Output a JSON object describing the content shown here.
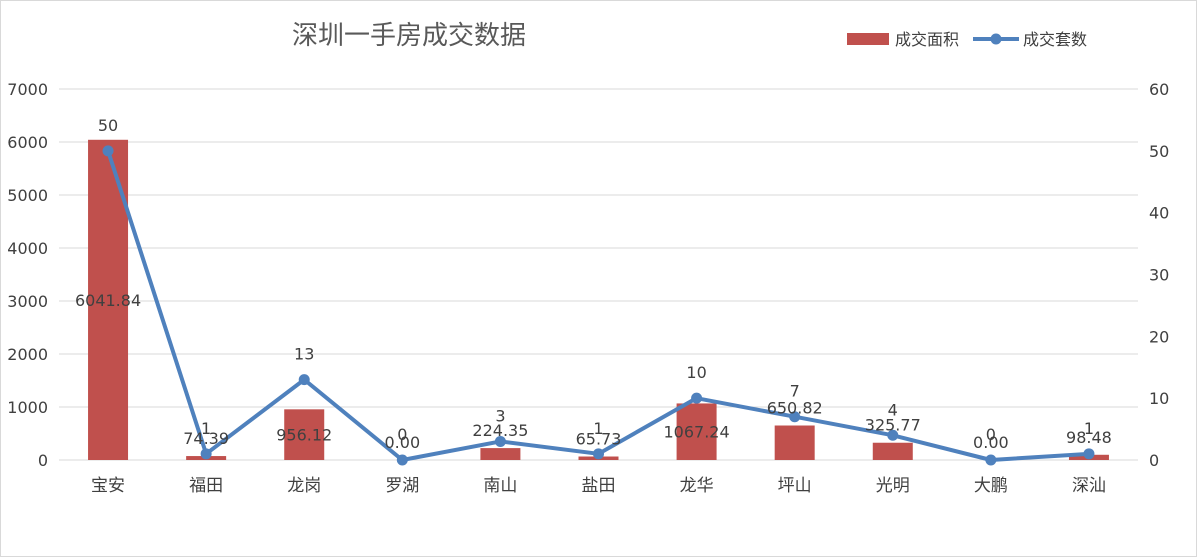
{
  "chart_data": {
    "type": "bar+line",
    "title": "深圳一手房成交数据",
    "categories": [
      "宝安",
      "福田",
      "龙岗",
      "罗湖",
      "南山",
      "盐田",
      "龙华",
      "坪山",
      "光明",
      "大鹏",
      "深汕"
    ],
    "series": [
      {
        "name": "成交面积",
        "type": "bar",
        "axis": "left",
        "color": "#c0504d",
        "values": [
          6041.84,
          74.39,
          956.12,
          0.0,
          224.35,
          65.73,
          1067.24,
          650.82,
          325.77,
          0.0,
          98.48
        ],
        "labels": [
          "6041.84",
          "74.39",
          "956.12",
          "0.00",
          "224.35",
          "65.73",
          "1067.24",
          "650.82",
          "325.77",
          "0.00",
          "98.48"
        ]
      },
      {
        "name": "成交套数",
        "type": "line",
        "axis": "right",
        "color": "#4f81bd",
        "values": [
          50,
          1,
          13,
          0,
          3,
          1,
          10,
          7,
          4,
          0,
          1
        ],
        "labels": [
          "50",
          "1",
          "13",
          "0",
          "3",
          "1",
          "10",
          "7",
          "4",
          "0",
          "1"
        ]
      }
    ],
    "y_left": {
      "min": 0,
      "max": 7000,
      "ticks": [
        "0",
        "1000",
        "2000",
        "3000",
        "4000",
        "5000",
        "6000",
        "7000"
      ]
    },
    "y_right": {
      "min": 0,
      "max": 60,
      "ticks": [
        "0",
        "10",
        "20",
        "30",
        "40",
        "50",
        "60"
      ]
    },
    "grid": true,
    "legend_position": "top-right"
  }
}
